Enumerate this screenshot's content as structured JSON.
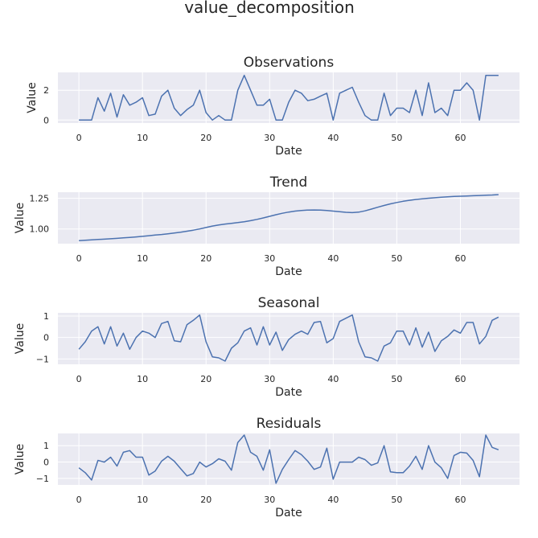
{
  "suptitle": "value_decomposition",
  "colors": {
    "line": "#4c72b0",
    "axes_bg": "#eaeaf2",
    "grid": "#ffffff",
    "text": "#262626"
  },
  "chart_data": [
    {
      "type": "line",
      "title": "Observations",
      "xlabel": "Date",
      "ylabel": "Value",
      "grid": true,
      "xlim": [
        -3.3,
        69.3
      ],
      "ylim": [
        -0.2,
        3.2
      ],
      "xticks": [
        0,
        10,
        20,
        30,
        40,
        50,
        60
      ],
      "yticks": [
        0,
        2
      ],
      "series": [
        {
          "x": [
            0,
            1,
            2,
            3,
            4,
            5,
            6,
            7,
            8,
            9,
            10,
            11,
            12,
            13,
            14,
            15,
            16,
            17,
            18,
            19,
            20,
            21,
            22,
            23,
            24,
            25,
            26,
            27,
            28,
            29,
            30,
            31,
            32,
            33,
            34,
            35,
            36,
            37,
            38,
            39,
            40,
            41,
            42,
            43,
            44,
            45,
            46,
            47,
            48,
            49,
            50,
            51,
            52,
            53,
            54,
            55,
            56,
            57,
            58,
            59,
            60,
            61,
            62,
            63,
            64,
            65,
            66
          ],
          "values": [
            0.0,
            0.0,
            0.0,
            1.5,
            0.6,
            1.8,
            0.2,
            1.7,
            1.0,
            1.2,
            1.5,
            0.3,
            0.4,
            1.6,
            2.0,
            0.8,
            0.3,
            0.7,
            1.0,
            2.0,
            0.5,
            0.0,
            0.3,
            0.0,
            0.0,
            2.0,
            3.0,
            2.0,
            1.0,
            1.0,
            1.4,
            0.0,
            0.0,
            1.2,
            2.0,
            1.8,
            1.3,
            1.4,
            1.6,
            1.8,
            0.0,
            1.8,
            2.0,
            2.2,
            1.2,
            0.3,
            0.0,
            0.0,
            1.8,
            0.3,
            0.8,
            0.8,
            0.5,
            2.0,
            0.3,
            2.5,
            0.5,
            0.8,
            0.3,
            2.0,
            2.0,
            2.5,
            2.0,
            0.0,
            3.0,
            3.0,
            3.0
          ]
        }
      ]
    },
    {
      "type": "line",
      "title": "Trend",
      "xlabel": "Date",
      "ylabel": "Value",
      "grid": true,
      "xlim": [
        -3.3,
        69.3
      ],
      "ylim": [
        0.88,
        1.3
      ],
      "xticks": [
        0,
        10,
        20,
        30,
        40,
        50,
        60
      ],
      "yticks": [
        1.0,
        1.25
      ],
      "ytick_format": 2,
      "series": [
        {
          "x": [
            0,
            1,
            2,
            3,
            4,
            5,
            6,
            7,
            8,
            9,
            10,
            11,
            12,
            13,
            14,
            15,
            16,
            17,
            18,
            19,
            20,
            21,
            22,
            23,
            24,
            25,
            26,
            27,
            28,
            29,
            30,
            31,
            32,
            33,
            34,
            35,
            36,
            37,
            38,
            39,
            40,
            41,
            42,
            43,
            44,
            45,
            46,
            47,
            48,
            49,
            50,
            51,
            52,
            53,
            54,
            55,
            56,
            57,
            58,
            59,
            60,
            61,
            62,
            63,
            64,
            65,
            66
          ],
          "values": [
            0.905,
            0.908,
            0.911,
            0.914,
            0.917,
            0.92,
            0.923,
            0.927,
            0.931,
            0.935,
            0.94,
            0.945,
            0.95,
            0.955,
            0.961,
            0.967,
            0.974,
            0.982,
            0.99,
            1.0,
            1.012,
            1.024,
            1.033,
            1.04,
            1.046,
            1.052,
            1.059,
            1.068,
            1.078,
            1.09,
            1.103,
            1.116,
            1.128,
            1.138,
            1.146,
            1.151,
            1.154,
            1.155,
            1.154,
            1.151,
            1.146,
            1.141,
            1.136,
            1.133,
            1.137,
            1.148,
            1.162,
            1.177,
            1.192,
            1.205,
            1.216,
            1.226,
            1.234,
            1.241,
            1.246,
            1.251,
            1.255,
            1.259,
            1.262,
            1.265,
            1.267,
            1.269,
            1.271,
            1.273,
            1.275,
            1.277,
            1.28
          ]
        }
      ]
    },
    {
      "type": "line",
      "title": "Seasonal",
      "xlabel": "Date",
      "ylabel": "Value",
      "grid": true,
      "xlim": [
        -3.3,
        69.3
      ],
      "ylim": [
        -1.25,
        1.15
      ],
      "xticks": [
        0,
        10,
        20,
        30,
        40,
        50,
        60
      ],
      "yticks": [
        -1,
        0,
        1
      ],
      "series": [
        {
          "x": [
            0,
            1,
            2,
            3,
            4,
            5,
            6,
            7,
            8,
            9,
            10,
            11,
            12,
            13,
            14,
            15,
            16,
            17,
            18,
            19,
            20,
            21,
            22,
            23,
            24,
            25,
            26,
            27,
            28,
            29,
            30,
            31,
            32,
            33,
            34,
            35,
            36,
            37,
            38,
            39,
            40,
            41,
            42,
            43,
            44,
            45,
            46,
            47,
            48,
            49,
            50,
            51,
            52,
            53,
            54,
            55,
            56,
            57,
            58,
            59,
            60,
            61,
            62,
            63,
            64,
            65,
            66
          ],
          "values": [
            -0.55,
            -0.2,
            0.3,
            0.5,
            -0.3,
            0.5,
            -0.4,
            0.2,
            -0.55,
            0.0,
            0.3,
            0.2,
            0.0,
            0.65,
            0.75,
            -0.15,
            -0.2,
            0.6,
            0.8,
            1.05,
            -0.2,
            -0.9,
            -0.95,
            -1.1,
            -0.5,
            -0.25,
            0.3,
            0.45,
            -0.35,
            0.5,
            -0.35,
            0.25,
            -0.6,
            -0.1,
            0.15,
            0.3,
            0.15,
            0.7,
            0.75,
            -0.25,
            -0.05,
            0.75,
            0.9,
            1.05,
            -0.2,
            -0.9,
            -0.95,
            -1.1,
            -0.4,
            -0.25,
            0.3,
            0.3,
            -0.35,
            0.45,
            -0.45,
            0.25,
            -0.65,
            -0.15,
            0.05,
            0.35,
            0.2,
            0.7,
            0.7,
            -0.3,
            0.05,
            0.8,
            0.95
          ]
        }
      ]
    },
    {
      "type": "line",
      "title": "Residuals",
      "xlabel": "Date",
      "ylabel": "Value",
      "grid": true,
      "xlim": [
        -3.3,
        69.3
      ],
      "ylim": [
        -1.4,
        1.75
      ],
      "xticks": [
        0,
        10,
        20,
        30,
        40,
        50,
        60
      ],
      "yticks": [
        -1,
        0,
        1
      ],
      "series": [
        {
          "x": [
            0,
            1,
            2,
            3,
            4,
            5,
            6,
            7,
            8,
            9,
            10,
            11,
            12,
            13,
            14,
            15,
            16,
            17,
            18,
            19,
            20,
            21,
            22,
            23,
            24,
            25,
            26,
            27,
            28,
            29,
            30,
            31,
            32,
            33,
            34,
            35,
            36,
            37,
            38,
            39,
            40,
            41,
            42,
            43,
            44,
            45,
            46,
            47,
            48,
            49,
            50,
            51,
            52,
            53,
            54,
            55,
            56,
            57,
            58,
            59,
            60,
            61,
            62,
            63,
            64,
            65,
            66
          ],
          "values": [
            -0.35,
            -0.65,
            -1.1,
            0.1,
            0.0,
            0.3,
            -0.25,
            0.6,
            0.7,
            0.3,
            0.3,
            -0.8,
            -0.55,
            0.05,
            0.35,
            0.05,
            -0.4,
            -0.85,
            -0.7,
            0.0,
            -0.3,
            -0.1,
            0.2,
            0.05,
            -0.5,
            1.2,
            1.65,
            0.6,
            0.35,
            -0.5,
            0.75,
            -1.3,
            -0.45,
            0.15,
            0.7,
            0.45,
            0.05,
            -0.45,
            -0.3,
            0.85,
            -1.05,
            0.0,
            0.0,
            0.0,
            0.3,
            0.15,
            -0.2,
            -0.05,
            1.0,
            -0.6,
            -0.65,
            -0.65,
            -0.25,
            0.35,
            -0.45,
            1.0,
            0.0,
            -0.35,
            -1.0,
            0.4,
            0.6,
            0.55,
            0.1,
            -0.9,
            1.65,
            0.9,
            0.75
          ]
        }
      ]
    }
  ]
}
